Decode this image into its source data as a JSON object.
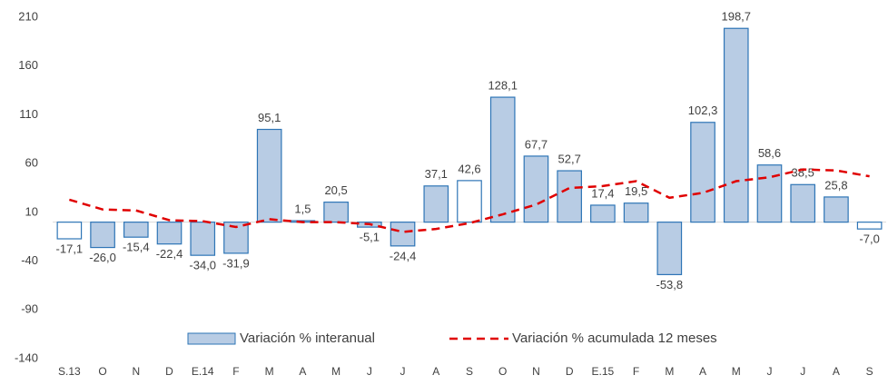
{
  "chart_data": {
    "type": "bar",
    "categories": [
      "S.13",
      "O",
      "N",
      "D",
      "E.14",
      "F",
      "M",
      "A",
      "M",
      "J",
      "J",
      "A",
      "S",
      "O",
      "N",
      "D",
      "E.15",
      "F",
      "M",
      "A",
      "M",
      "J",
      "J",
      "A",
      "S"
    ],
    "series": [
      {
        "name": "Variación % interanual",
        "type": "bar",
        "color": "#b8cce4",
        "edge_color": "#2e75b6",
        "colors": [
          "#ffffff",
          "#b8cce4",
          "#b8cce4",
          "#b8cce4",
          "#b8cce4",
          "#b8cce4",
          "#b8cce4",
          "#b8cce4",
          "#b8cce4",
          "#b8cce4",
          "#b8cce4",
          "#b8cce4",
          "#ffffff",
          "#b8cce4",
          "#b8cce4",
          "#b8cce4",
          "#b8cce4",
          "#b8cce4",
          "#b8cce4",
          "#b8cce4",
          "#b8cce4",
          "#b8cce4",
          "#b8cce4",
          "#b8cce4",
          "#ffffff"
        ],
        "values": [
          -17.1,
          -26.0,
          -15.4,
          -22.4,
          -34.0,
          -31.9,
          95.1,
          1.5,
          20.5,
          -5.1,
          -24.4,
          37.1,
          42.6,
          128.1,
          67.7,
          52.7,
          17.4,
          19.5,
          -53.8,
          102.3,
          198.7,
          58.6,
          38.5,
          25.8,
          -7.0
        ],
        "value_labels": [
          "-17,1",
          "-26,0",
          "-15,4",
          "-22,4",
          "-34,0",
          "-31,9",
          "95,1",
          "1,5",
          "20,5",
          "-5,1",
          "-24,4",
          "37,1",
          "42,6",
          "128,1",
          "67,7",
          "52,7",
          "17,4",
          "19,5",
          "-53,8",
          "102,3",
          "198,7",
          "58,6",
          "38,5",
          "25,8",
          "-7,0"
        ]
      },
      {
        "name": "Variación % acumulada 12 meses",
        "type": "line",
        "color": "#e00000",
        "values": [
          23,
          13,
          12,
          2,
          1,
          -5,
          3,
          0,
          0,
          -2,
          -10,
          -7,
          -1,
          8,
          18,
          35,
          37,
          42,
          25,
          30,
          42,
          46,
          54,
          53,
          47
        ]
      }
    ],
    "ylim": [
      -140,
      215
    ],
    "yticks": [
      -140,
      -90,
      -40,
      10,
      60,
      110,
      160,
      210
    ],
    "legend": "bottom"
  }
}
